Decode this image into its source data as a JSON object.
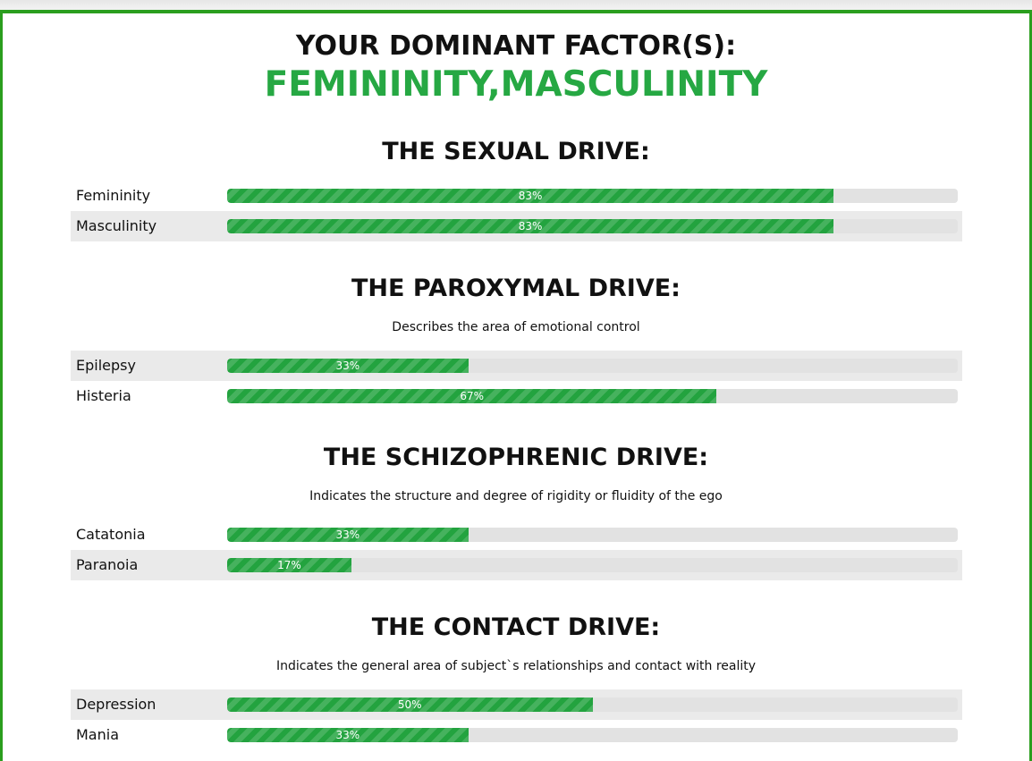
{
  "header": {
    "dominant_title": "YOUR DOMINANT FACTOR(S):",
    "dominant_factors": "FEMININITY,MASCULINITY"
  },
  "theme": {
    "accent": "#26a843",
    "frame": "#2a9e1e",
    "track": "#e2e2e2"
  },
  "sections": [
    {
      "title": "THE SEXUAL DRIVE:",
      "description": "",
      "items": [
        {
          "label": "Femininity",
          "percent": 83,
          "display": "83%"
        },
        {
          "label": "Masculinity",
          "percent": 83,
          "display": "83%"
        }
      ]
    },
    {
      "title": "THE PAROXYMAL DRIVE:",
      "description": "Describes the area of emotional control",
      "items": [
        {
          "label": "Epilepsy",
          "percent": 33,
          "display": "33%"
        },
        {
          "label": "Histeria",
          "percent": 67,
          "display": "67%"
        }
      ]
    },
    {
      "title": "THE SCHIZOPHRENIC DRIVE:",
      "description": "Indicates the structure and degree of rigidity or fluidity of the ego",
      "items": [
        {
          "label": "Catatonia",
          "percent": 33,
          "display": "33%"
        },
        {
          "label": "Paranoia",
          "percent": 17,
          "display": "17%"
        }
      ]
    },
    {
      "title": "THE CONTACT DRIVE:",
      "description": "Indicates the general area of subject`s relationships and contact with reality",
      "items": [
        {
          "label": "Depression",
          "percent": 50,
          "display": "50%"
        },
        {
          "label": "Mania",
          "percent": 33,
          "display": "33%"
        }
      ]
    }
  ]
}
